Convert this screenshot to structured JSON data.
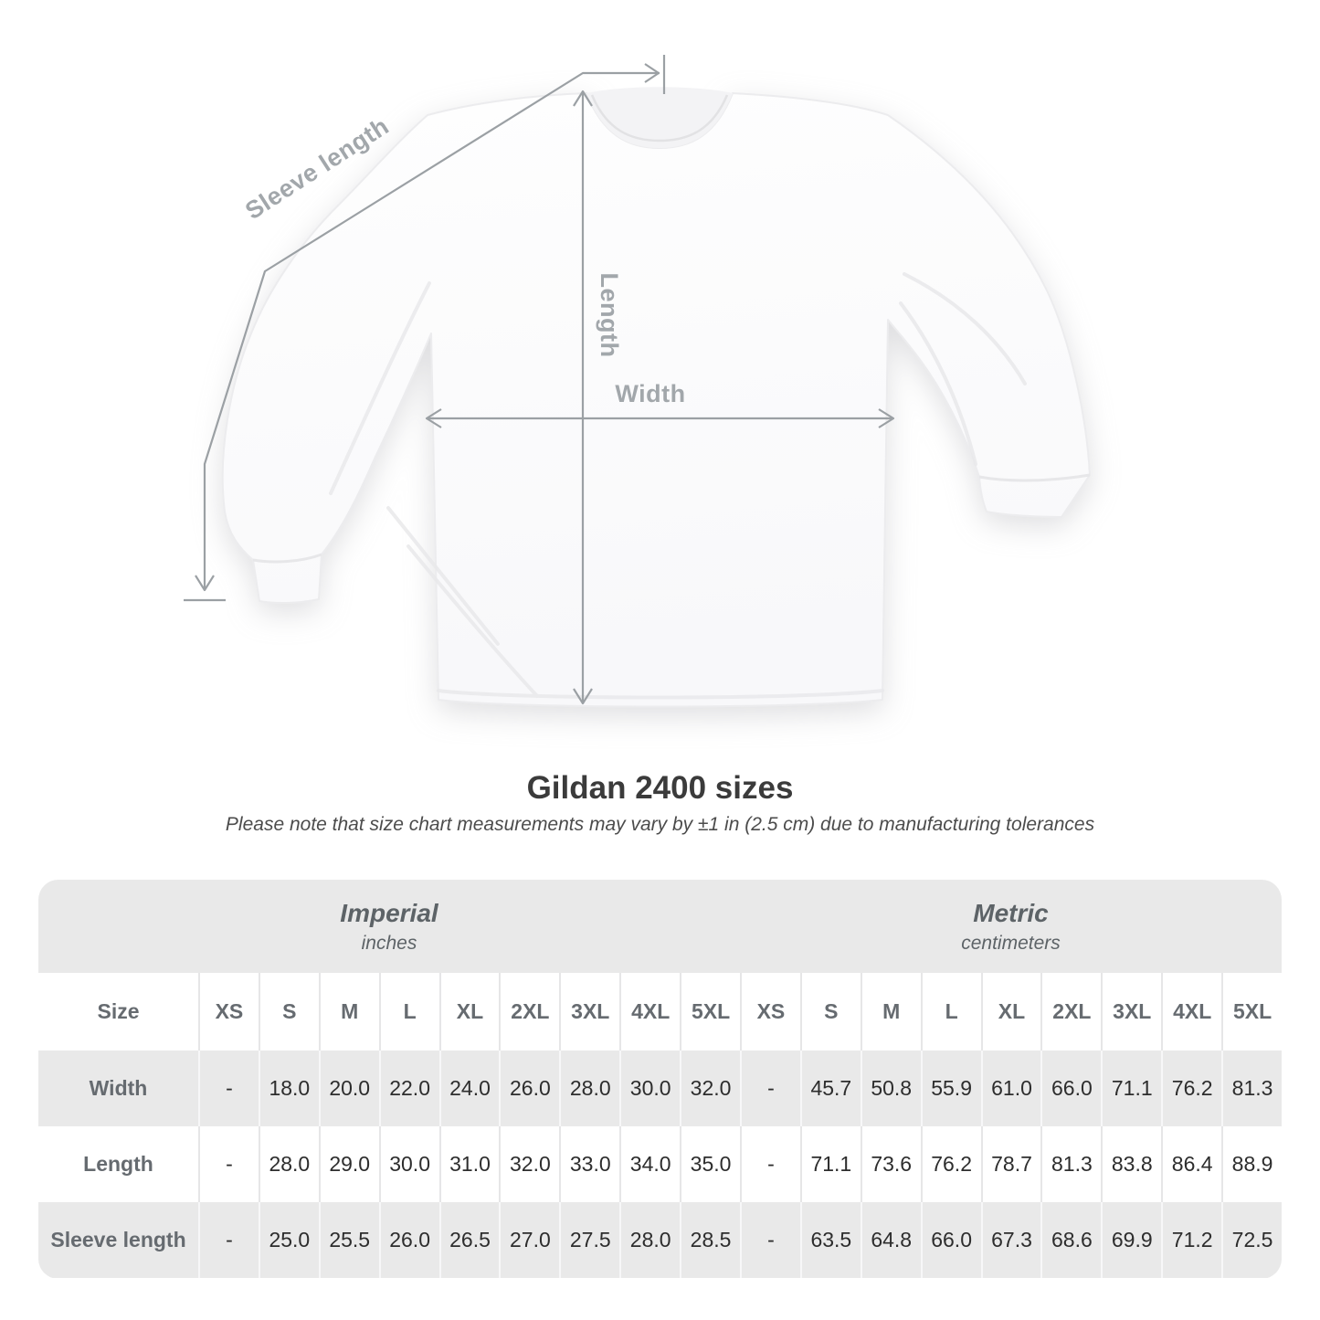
{
  "title": "Gildan 2400 sizes",
  "subtitle": "Please note that size chart measurements may vary by ±1 in (2.5 cm) due to manufacturing tolerances",
  "diagram": {
    "labels": {
      "sleeve_length": "Sleeve length",
      "length": "Length",
      "width": "Width"
    },
    "annotation_line_color": "#9ba0a4",
    "annotation_label_color": "#a2a7ab"
  },
  "table": {
    "corner_label": "Size",
    "unit_groups": [
      {
        "name": "Imperial",
        "unit": "inches"
      },
      {
        "name": "Metric",
        "unit": "centimeters"
      }
    ],
    "sizes": [
      "XS",
      "S",
      "M",
      "L",
      "XL",
      "2XL",
      "3XL",
      "4XL",
      "5XL"
    ],
    "rows": [
      {
        "label": "Width",
        "imperial": [
          "-",
          "18.0",
          "20.0",
          "22.0",
          "24.0",
          "26.0",
          "28.0",
          "30.0",
          "32.0"
        ],
        "metric": [
          "-",
          "45.7",
          "50.8",
          "55.9",
          "61.0",
          "66.0",
          "71.1",
          "76.2",
          "81.3"
        ]
      },
      {
        "label": "Length",
        "imperial": [
          "-",
          "28.0",
          "29.0",
          "30.0",
          "31.0",
          "32.0",
          "33.0",
          "34.0",
          "35.0"
        ],
        "metric": [
          "-",
          "71.1",
          "73.6",
          "76.2",
          "78.7",
          "81.3",
          "83.8",
          "86.4",
          "88.9"
        ]
      },
      {
        "label": "Sleeve length",
        "imperial": [
          "-",
          "25.0",
          "25.5",
          "26.0",
          "26.5",
          "27.0",
          "27.5",
          "28.0",
          "28.5"
        ],
        "metric": [
          "-",
          "63.5",
          "64.8",
          "66.0",
          "67.3",
          "68.6",
          "69.9",
          "71.2",
          "72.5"
        ]
      }
    ]
  },
  "colors": {
    "row_gray": "#e9e9e9",
    "header_text": "#666b70",
    "value_text": "#2d2d2d",
    "title_text": "#3b3b3b"
  }
}
